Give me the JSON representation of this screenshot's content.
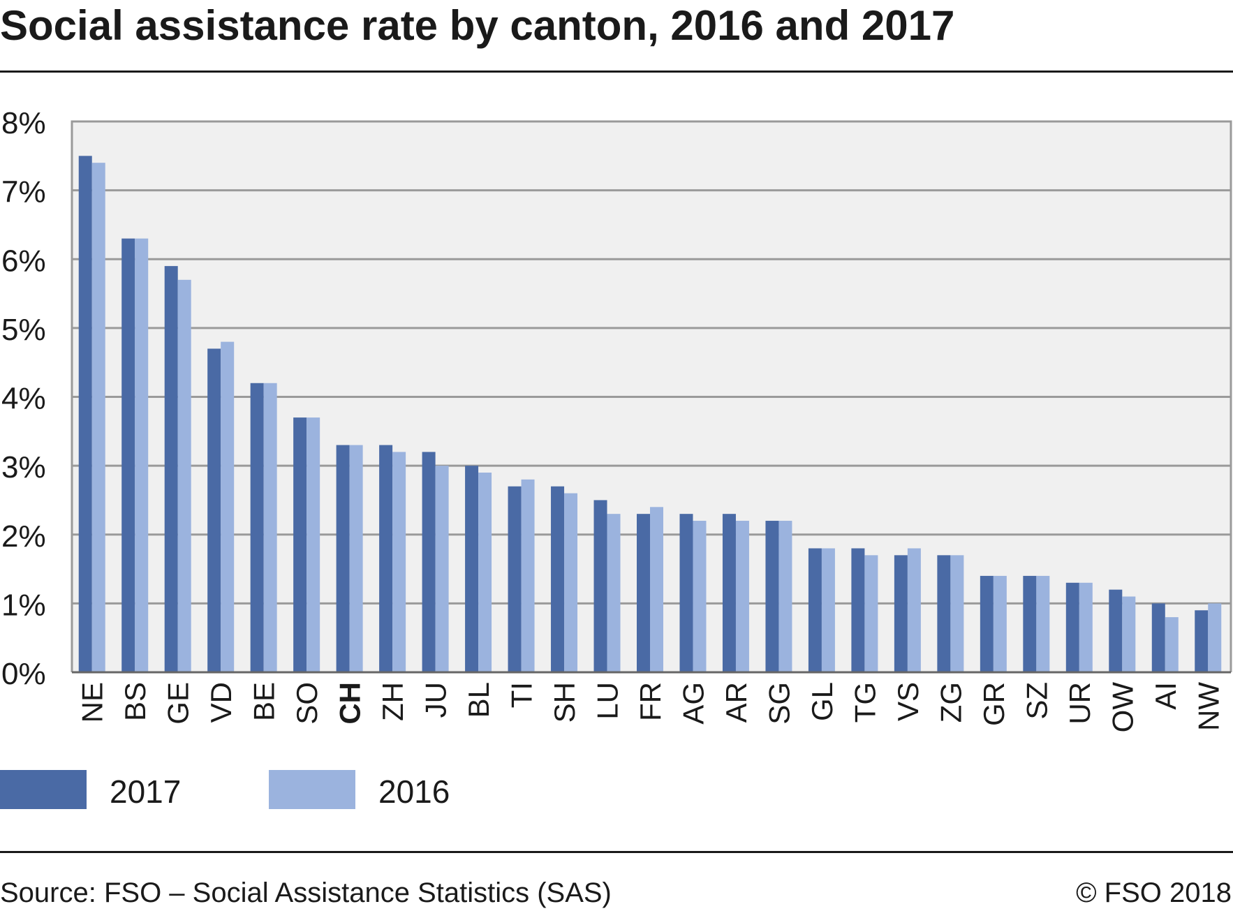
{
  "title": "Social assistance rate by canton, 2016 and 2017",
  "source": "Source: FSO – Social Assistance Statistics (SAS)",
  "copyright": "© FSO 2018",
  "colors": {
    "series_2017": "#4a6aa5",
    "series_2016": "#9bb3de",
    "plot_bg": "#f0f0f0",
    "grid": "#9a9a9a"
  },
  "chart_data": {
    "type": "bar",
    "categories": [
      "NE",
      "BS",
      "GE",
      "VD",
      "BE",
      "SO",
      "CH",
      "ZH",
      "JU",
      "BL",
      "TI",
      "SH",
      "LU",
      "FR",
      "AG",
      "AR",
      "SG",
      "GL",
      "TG",
      "VS",
      "ZG",
      "GR",
      "SZ",
      "UR",
      "OW",
      "AI",
      "NW"
    ],
    "highlight_category": "CH",
    "series": [
      {
        "name": "2017",
        "values": [
          7.5,
          6.3,
          5.9,
          4.7,
          4.2,
          3.7,
          3.3,
          3.3,
          3.2,
          3.0,
          2.7,
          2.7,
          2.5,
          2.3,
          2.3,
          2.3,
          2.2,
          1.8,
          1.8,
          1.7,
          1.7,
          1.4,
          1.4,
          1.3,
          1.2,
          1.0,
          0.9
        ]
      },
      {
        "name": "2016",
        "values": [
          7.4,
          6.3,
          5.7,
          4.8,
          4.2,
          3.7,
          3.3,
          3.2,
          3.0,
          2.9,
          2.8,
          2.6,
          2.3,
          2.4,
          2.2,
          2.2,
          2.2,
          1.8,
          1.7,
          1.8,
          1.7,
          1.4,
          1.4,
          1.3,
          1.1,
          0.8,
          1.0
        ]
      }
    ],
    "ylim": [
      0,
      8
    ],
    "yticks": [
      0,
      1,
      2,
      3,
      4,
      5,
      6,
      7,
      8
    ],
    "ytick_format": "%",
    "grid": true,
    "legend_placement": "bottom-left"
  }
}
